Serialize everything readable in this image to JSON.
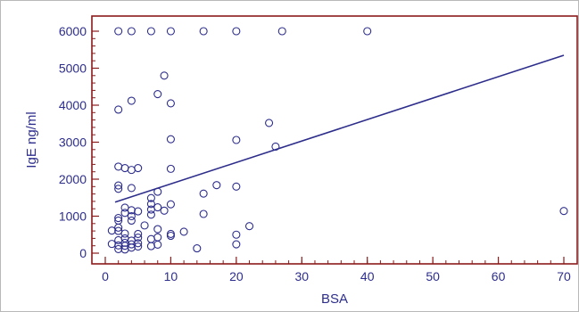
{
  "chart_data": {
    "type": "scatter",
    "title": "",
    "xlabel": "BSA",
    "ylabel": "IgE ng/ml",
    "xlim": [
      0,
      70
    ],
    "ylim": [
      0,
      6000
    ],
    "x_ticks": [
      0,
      10,
      20,
      30,
      40,
      50,
      60,
      70
    ],
    "y_ticks": [
      0,
      1000,
      2000,
      3000,
      4000,
      5000,
      6000
    ],
    "x_minor_step": 2,
    "y_minor_step": 200,
    "grid": false,
    "legend": "none",
    "colors": {
      "axis": "#8b1a1a",
      "marks": "#2d2d8c",
      "text": "#2d2d8c"
    },
    "regression_line": {
      "x": [
        1.5,
        70
      ],
      "y": [
        1380,
        5350
      ]
    },
    "points": [
      {
        "x": 2,
        "y": 6000
      },
      {
        "x": 4,
        "y": 6000
      },
      {
        "x": 7,
        "y": 6000
      },
      {
        "x": 10,
        "y": 6000
      },
      {
        "x": 15,
        "y": 6000
      },
      {
        "x": 20,
        "y": 6000
      },
      {
        "x": 27,
        "y": 6000
      },
      {
        "x": 40,
        "y": 6000
      },
      {
        "x": 9,
        "y": 4800
      },
      {
        "x": 8,
        "y": 4300
      },
      {
        "x": 4,
        "y": 4120
      },
      {
        "x": 10,
        "y": 4050
      },
      {
        "x": 2,
        "y": 3880
      },
      {
        "x": 25,
        "y": 3520
      },
      {
        "x": 10,
        "y": 3080
      },
      {
        "x": 20,
        "y": 3060
      },
      {
        "x": 26,
        "y": 2880
      },
      {
        "x": 2,
        "y": 2340
      },
      {
        "x": 3,
        "y": 2300
      },
      {
        "x": 4,
        "y": 2250
      },
      {
        "x": 5,
        "y": 2300
      },
      {
        "x": 10,
        "y": 2280
      },
      {
        "x": 17,
        "y": 1840
      },
      {
        "x": 2,
        "y": 1830
      },
      {
        "x": 20,
        "y": 1800
      },
      {
        "x": 2,
        "y": 1740
      },
      {
        "x": 4,
        "y": 1760
      },
      {
        "x": 8,
        "y": 1660
      },
      {
        "x": 15,
        "y": 1610
      },
      {
        "x": 7,
        "y": 1490
      },
      {
        "x": 7,
        "y": 1330
      },
      {
        "x": 10,
        "y": 1320
      },
      {
        "x": 3,
        "y": 1230
      },
      {
        "x": 8,
        "y": 1240
      },
      {
        "x": 7,
        "y": 1180
      },
      {
        "x": 9,
        "y": 1150
      },
      {
        "x": 4,
        "y": 1160
      },
      {
        "x": 5,
        "y": 1130
      },
      {
        "x": 70,
        "y": 1140
      },
      {
        "x": 3,
        "y": 1090
      },
      {
        "x": 15,
        "y": 1060
      },
      {
        "x": 7,
        "y": 1040
      },
      {
        "x": 4,
        "y": 1000
      },
      {
        "x": 2,
        "y": 950
      },
      {
        "x": 2,
        "y": 880
      },
      {
        "x": 4,
        "y": 880
      },
      {
        "x": 6,
        "y": 750
      },
      {
        "x": 22,
        "y": 730
      },
      {
        "x": 2,
        "y": 690
      },
      {
        "x": 8,
        "y": 650
      },
      {
        "x": 2,
        "y": 600
      },
      {
        "x": 1,
        "y": 610
      },
      {
        "x": 12,
        "y": 580
      },
      {
        "x": 3,
        "y": 530
      },
      {
        "x": 5,
        "y": 520
      },
      {
        "x": 10,
        "y": 520
      },
      {
        "x": 20,
        "y": 500
      },
      {
        "x": 10,
        "y": 470
      },
      {
        "x": 3,
        "y": 400
      },
      {
        "x": 8,
        "y": 430
      },
      {
        "x": 5,
        "y": 420
      },
      {
        "x": 7,
        "y": 380
      },
      {
        "x": 2,
        "y": 350
      },
      {
        "x": 4,
        "y": 340
      },
      {
        "x": 3,
        "y": 280
      },
      {
        "x": 5,
        "y": 270
      },
      {
        "x": 1,
        "y": 250
      },
      {
        "x": 4,
        "y": 240
      },
      {
        "x": 20,
        "y": 240
      },
      {
        "x": 8,
        "y": 230
      },
      {
        "x": 2,
        "y": 210
      },
      {
        "x": 3,
        "y": 200
      },
      {
        "x": 7,
        "y": 190
      },
      {
        "x": 5,
        "y": 180
      },
      {
        "x": 4,
        "y": 150
      },
      {
        "x": 14,
        "y": 130
      },
      {
        "x": 2,
        "y": 110
      },
      {
        "x": 3,
        "y": 100
      }
    ]
  }
}
